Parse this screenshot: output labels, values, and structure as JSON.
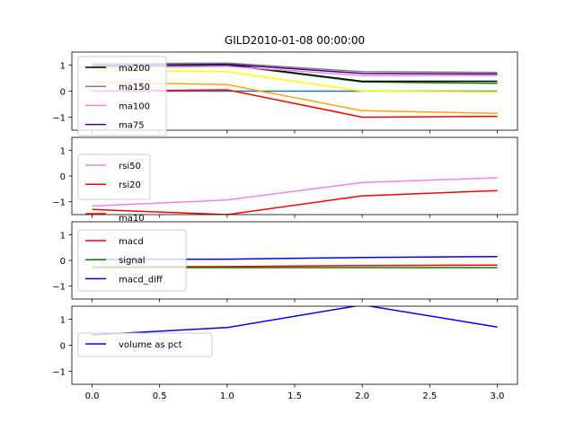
{
  "figure": {
    "title": "GILD2010-01-08 00:00:00"
  },
  "chart_data": [
    {
      "type": "line",
      "x": [
        0,
        1,
        2,
        3
      ],
      "xlim": [
        -0.15,
        3.15
      ],
      "ylim": [
        -1.5,
        1.5
      ],
      "yticks": [
        "1",
        "0",
        "−1"
      ],
      "xticks": [],
      "legend": {
        "placement": "upper-left",
        "entries": [
          "ma200",
          "ma150",
          "ma100",
          "ma75"
        ]
      },
      "series": [
        {
          "name": "",
          "color": "#1f77b4",
          "values": [
            0.0,
            0.0,
            0.0,
            0.0
          ]
        },
        {
          "name": "",
          "color": "#ffa500",
          "values": [
            0.35,
            0.25,
            -0.75,
            -0.85
          ]
        },
        {
          "name": "",
          "color": "#ff0000",
          "values": [
            0.0,
            0.05,
            -1.0,
            -0.97
          ]
        },
        {
          "name": "",
          "color": "#ffff00",
          "values": [
            0.78,
            0.75,
            0.0,
            -0.03
          ]
        },
        {
          "name": "",
          "color": "#008000",
          "values": [
            0.95,
            1.0,
            0.35,
            0.3
          ]
        },
        {
          "name": "ma200",
          "color": "#000000",
          "values": [
            1.0,
            1.02,
            0.38,
            0.38
          ]
        },
        {
          "name": "ma150",
          "color": "#808080",
          "values": [
            1.05,
            1.08,
            0.75,
            0.72
          ]
        },
        {
          "name": "ma100",
          "color": "#ee82ee",
          "values": [
            0.9,
            0.95,
            0.6,
            0.6
          ]
        },
        {
          "name": "ma75",
          "color": "#4b0082",
          "values": [
            0.98,
            1.03,
            0.68,
            0.66
          ]
        }
      ]
    },
    {
      "type": "line",
      "x": [
        0,
        1,
        2,
        3
      ],
      "xlim": [
        -0.15,
        3.15
      ],
      "ylim": [
        -1.5,
        1.5
      ],
      "yticks": [
        "1",
        "0",
        "−1"
      ],
      "xticks": [],
      "legend": {
        "placement": "center-left",
        "entries": [
          "rsi50",
          "rsi20"
        ]
      },
      "series": [
        {
          "name": "rsi50",
          "color": "#ee82ee",
          "values": [
            -1.17,
            -0.93,
            -0.25,
            -0.07
          ]
        },
        {
          "name": "rsi20",
          "color": "#ff0000",
          "values": [
            -1.3,
            -1.5,
            -0.77,
            -0.57
          ]
        }
      ]
    },
    {
      "type": "line",
      "x": [
        0,
        1,
        2,
        3
      ],
      "xlim": [
        -0.15,
        3.15
      ],
      "ylim": [
        -1.5,
        1.5
      ],
      "yticks": [
        "1",
        "0",
        "−1"
      ],
      "xticks": [],
      "legend": {
        "placement": "upper-left",
        "entries": [
          "macd",
          "signal",
          "macd_diff"
        ],
        "clipped_entry": "ma10"
      },
      "series": [
        {
          "name": "macd",
          "color": "#ff0000",
          "values": [
            -0.25,
            -0.24,
            -0.2,
            -0.18
          ]
        },
        {
          "name": "signal",
          "color": "#008000",
          "values": [
            -0.28,
            -0.28,
            -0.28,
            -0.28
          ]
        },
        {
          "name": "macd_diff",
          "color": "#0000ff",
          "values": [
            0.04,
            0.05,
            0.11,
            0.15
          ]
        }
      ]
    },
    {
      "type": "line",
      "x": [
        0,
        1,
        2,
        3
      ],
      "xlim": [
        -0.15,
        3.15
      ],
      "ylim": [
        -1.5,
        1.5
      ],
      "yticks": [
        "1",
        "0",
        "−1"
      ],
      "xticks": [
        "0.0",
        "0.5",
        "1.0",
        "1.5",
        "2.0",
        "2.5",
        "3.0"
      ],
      "legend": {
        "placement": "center-left",
        "entries": [
          "volume as pct"
        ]
      },
      "series": [
        {
          "name": "volume as pct",
          "color": "#0000ff",
          "values": [
            0.4,
            0.68,
            1.55,
            0.7
          ]
        }
      ]
    }
  ]
}
